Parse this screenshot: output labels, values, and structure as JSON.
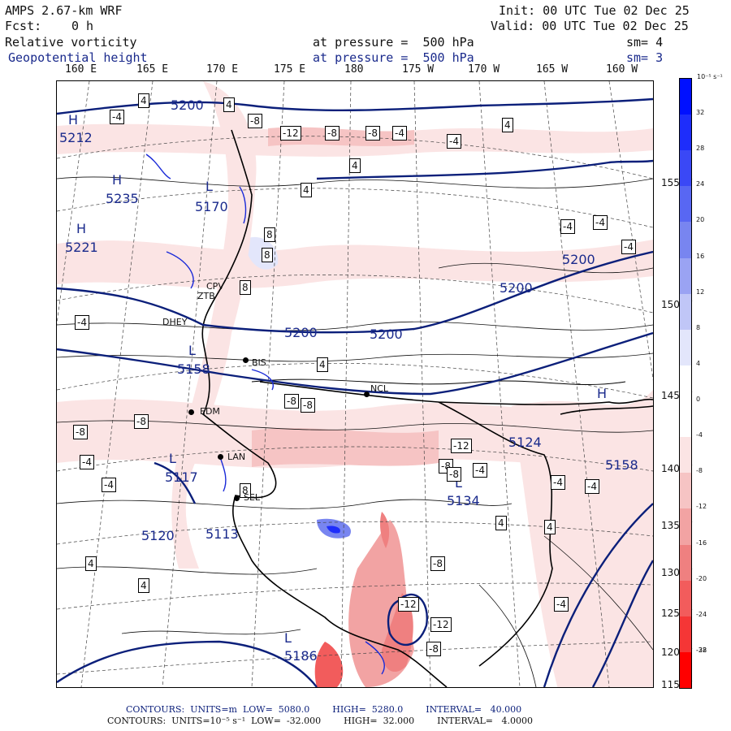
{
  "header": {
    "model": "AMPS 2.67-km WRF",
    "fcst_label": "Fcst:",
    "fcst_value": "0 h",
    "init": "Init: 00 UTC Tue 02 Dec 25",
    "valid": "Valid: 00 UTC Tue 02 Dec 25",
    "field1_name": "Relative vorticity",
    "field1_level": "at pressure =  500 hPa",
    "field1_smooth": "sm= 4",
    "field2_name": "Geopotential height",
    "field2_level": "at pressure =  500 hPa",
    "field2_smooth": "sm= 3"
  },
  "longitude_labels": [
    "160 E",
    "165 E",
    "170 E",
    "175 E",
    "180",
    "175 W",
    "170 W",
    "165 W",
    "160 W"
  ],
  "latitude_labels": [
    "155 W",
    "150 W",
    "145 W",
    "140 W",
    "135 W",
    "130 W",
    "125 W",
    "120 W",
    "115 W"
  ],
  "colorbar": {
    "unit_label": "10⁻⁵ s⁻¹",
    "tick_labels": [
      "32",
      "28",
      "24",
      "20",
      "16",
      "12",
      "8",
      "4",
      "0",
      "-4",
      "-8",
      "-12",
      "-16",
      "-20",
      "-24",
      "-28",
      "-32"
    ],
    "colors_top_to_bottom": [
      "#0010ff",
      "#1e2dfb",
      "#3a48f6",
      "#5867f3",
      "#7885f0",
      "#9aa3f3",
      "#c0c6f7",
      "#e3e6fb",
      "#ffffff",
      "#ffffff",
      "#fbe4e4",
      "#f6c4c4",
      "#f2a3a3",
      "#ef8080",
      "#f25c5c",
      "#f53636",
      "#ff0000"
    ]
  },
  "map": {
    "height_labels": [
      "5200",
      "5200",
      "5200",
      "5200",
      "5200",
      "5212",
      "5235",
      "5221",
      "5170",
      "5158",
      "5117",
      "5120",
      "5113",
      "5124",
      "5158",
      "5134",
      "5186"
    ],
    "hl_labels": [
      "H",
      "H",
      "H",
      "L",
      "L",
      "L",
      "L",
      "L",
      "H"
    ],
    "vorticity_box_labels": [
      "4",
      "-4",
      "4",
      "-8",
      "-12",
      "-8",
      "-8",
      "-4",
      "-4",
      "4",
      "4",
      "4",
      "8",
      "8",
      "8",
      "-4",
      "-4",
      "-4",
      "4",
      "-8",
      "-8",
      "-8",
      "-8",
      "-4",
      "-12",
      "-8",
      "-8",
      "-4",
      "-4",
      "-4",
      "4",
      "-8",
      "-12",
      "-12",
      "-8",
      "4",
      "-4",
      "4",
      "-4",
      "4",
      "-4",
      "8"
    ],
    "stations": [
      "CPV",
      "ZTB",
      "DHEY",
      "BIS",
      "NCL",
      "EDM",
      "LAN",
      "SEL"
    ]
  },
  "footer": {
    "line1": "CONTOURS:  UNITS=m  LOW=  5080.0        HIGH=  5280.0        INTERVAL=   40.000",
    "line2": "CONTOURS:  UNITS=10⁻⁵ s⁻¹  LOW=  -32.000        HIGH=  32.000        INTERVAL=   4.0000"
  }
}
